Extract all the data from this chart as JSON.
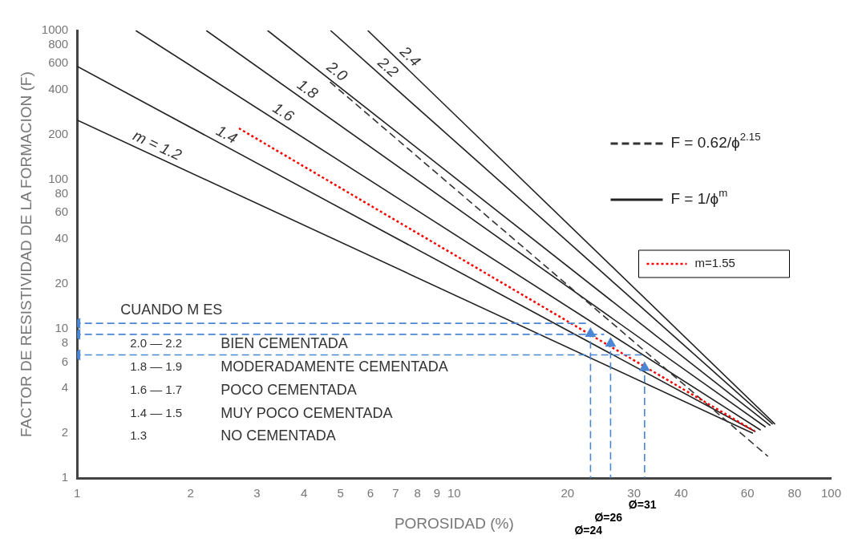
{
  "chart_data": {
    "type": "line",
    "xlabel": "POROSIDAD (%)",
    "ylabel": "FACTOR DE RESISTIVIDAD DE LA FORMACION (F)",
    "log": "xy",
    "xlim": [
      1,
      100
    ],
    "ylim": [
      1,
      1000
    ],
    "xticks": [
      1,
      2,
      3,
      4,
      5,
      6,
      7,
      8,
      9,
      10,
      20,
      30,
      40,
      60,
      80,
      100
    ],
    "yticks": [
      1,
      2,
      4,
      6,
      8,
      10,
      20,
      40,
      60,
      80,
      100,
      200,
      400,
      600,
      800,
      1000
    ],
    "grid": false,
    "legend": "right",
    "marker": "none",
    "series": [
      {
        "name": "m = 1.2",
        "color": "#222222",
        "line_style": "solid",
        "x": [
          1,
          62
        ],
        "values": [
          251,
          2.0
        ]
      },
      {
        "name": "1.4",
        "color": "#222222",
        "line_style": "solid",
        "x": [
          1,
          63
        ],
        "values": [
          575,
          2.05
        ]
      },
      {
        "name": "1.6",
        "color": "#222222",
        "line_style": "solid",
        "x": [
          1.43,
          65
        ],
        "values": [
          1000,
          2.1
        ]
      },
      {
        "name": "1.8",
        "color": "#222222",
        "line_style": "solid",
        "x": [
          2.2,
          67
        ],
        "values": [
          1000,
          2.2
        ]
      },
      {
        "name": "2.0",
        "color": "#222222",
        "line_style": "solid",
        "x": [
          3.2,
          69
        ],
        "values": [
          1000,
          2.25
        ]
      },
      {
        "name": "2.2",
        "color": "#222222",
        "line_style": "solid",
        "x": [
          4.7,
          70
        ],
        "values": [
          1000,
          2.3
        ]
      },
      {
        "name": "2.4",
        "color": "#222222",
        "line_style": "solid",
        "x": [
          5.9,
          71
        ],
        "values": [
          1000,
          2.3
        ]
      },
      {
        "name": "F = 0.62/ϕ$^{2.15}$",
        "color": "#333333",
        "line_style": "dashed",
        "x": [
          4.6,
          68
        ],
        "values": [
          470,
          1.4
        ]
      },
      {
        "name": "m=1.55",
        "color": "#ff0000",
        "line_style": "dotted",
        "x": [
          2.67,
          62.6
        ],
        "values": [
          223,
          2.07
        ]
      },
      {
        "color": "#4a86d4",
        "line_style": "dashed",
        "marker": "triangle",
        "x": [
          23,
          23
        ],
        "values": [
          1,
          9.3
        ]
      },
      {
        "color": "#4a86d4",
        "line_style": "dashed",
        "marker": "triangle",
        "x": [
          26,
          26
        ],
        "values": [
          1,
          8.0
        ]
      },
      {
        "color": "#4a86d4",
        "line_style": "dashed",
        "marker": "triangle",
        "x": [
          32,
          32
        ],
        "values": [
          1,
          5.5
        ]
      },
      {
        "color": "#4a86d4",
        "line_style": "dashed",
        "marker": "triangle",
        "x": [
          22.4,
          1
        ],
        "values": [
          10.9,
          10.9
        ]
      },
      {
        "color": "#4a86d4",
        "line_style": "dashed",
        "marker": "triangle",
        "x": [
          25,
          1
        ],
        "values": [
          9.2,
          9.2
        ]
      },
      {
        "color": "#4a86d4",
        "line_style": "dashed",
        "marker": "triangle",
        "x": [
          31.8,
          1
        ],
        "values": [
          6.7,
          6.7
        ]
      }
    ],
    "annotations": [
      "F = 1/ϕ$^{m}$",
      "CUANDO M ES",
      "2.0 — 2.2",
      "BIEN CEMENTADA",
      "1.8 — 1.9",
      "MODERADAMENTE CEMENTADA",
      "1.6 — 1.7",
      "POCO CEMENTADA",
      "1.4 — 1.5",
      "MUY POCO CEMENTADA",
      "1.3",
      "NO CEMENTADA",
      "Ø=24",
      "Ø=26",
      "Ø=31"
    ]
  }
}
